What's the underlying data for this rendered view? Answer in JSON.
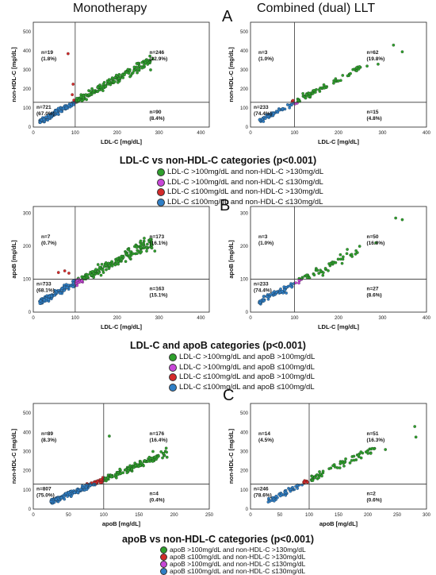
{
  "headers": {
    "left": "Monotherapy",
    "right": "Combined (dual) LLT"
  },
  "panel_letters": [
    "A",
    "B",
    "C"
  ],
  "colors": {
    "green": "#2ea02c",
    "magenta": "#c846d8",
    "red": "#d42a2a",
    "blue": "#2f7fc6"
  },
  "legends": [
    {
      "title": "LDL-C vs non-HDL-C categories (p<0.001)",
      "items": [
        {
          "text": "LDL-C >100mg/dL and non-HDL-C >130mg/dL",
          "color": "#2ea02c"
        },
        {
          "text": "LDL-C >100mg/dL and non-HDL-C ≤130mg/dL",
          "color": "#c846d8"
        },
        {
          "text": "LDL-C ≤100mg/dL and non-HDL-C >130mg/dL",
          "color": "#d42a2a"
        },
        {
          "text": "LDL-C ≤100mg/dL and non-HDL-C ≤130mg/dL",
          "color": "#2f7fc6"
        }
      ]
    },
    {
      "title": "LDL-C and apoB categories (p<0.001)",
      "items": [
        {
          "text": "LDL-C >100mg/dL and apoB >100mg/dL",
          "color": "#2ea02c"
        },
        {
          "text": "LDL-C >100mg/dL and apoB ≤100mg/dL",
          "color": "#c846d8"
        },
        {
          "text": "LDL-C ≤100mg/dL and apoB >100mg/dL",
          "color": "#d42a2a"
        },
        {
          "text": "LDL-C ≤100mg/dL and apoB ≤100mg/dL",
          "color": "#2f7fc6"
        }
      ]
    },
    {
      "title": "apoB vs non-HDL-C categories (p<0.001)",
      "items": [
        {
          "text": "apoB >100mg/dL and non-HDL-C >130mg/dL",
          "color": "#2ea02c"
        },
        {
          "text": "apoB ≤100mg/dL and non-HDL-C >130mg/dL",
          "color": "#d42a2a"
        },
        {
          "text": "apoB >100mg/dL and non-HDL-C ≤130mg/dL",
          "color": "#c846d8"
        },
        {
          "text": "apoB ≤100mg/dL and non-HDL-C ≤130mg/dL",
          "color": "#2f7fc6"
        }
      ]
    }
  ],
  "chart_data": [
    {
      "id": "A-mono",
      "type": "scatter",
      "xlabel": "LDL-C [mg/dL]",
      "ylabel": "non-HDL-C [mg/dL]",
      "xlim": [
        0,
        420
      ],
      "ylim": [
        0,
        550
      ],
      "xticks": [
        0,
        100,
        200,
        300,
        400
      ],
      "yticks": [
        0,
        100,
        200,
        300,
        400,
        500
      ],
      "xcut": 100,
      "ycut": 130,
      "slope": 1.22,
      "extra": 10,
      "xmin": 15,
      "xmax": 285,
      "n_points": 300,
      "outliers": [
        [
          83,
          385
        ],
        [
          95,
          225
        ],
        [
          93,
          170
        ],
        [
          260,
          310
        ],
        [
          248,
          285
        ],
        [
          280,
          300
        ]
      ],
      "quadrants": [
        {
          "pos": "top-left",
          "n": "n=19",
          "pct": "(1.8%)"
        },
        {
          "pos": "top-right",
          "n": "n=246",
          "pct": "(22.9%)"
        },
        {
          "pos": "bottom-left",
          "n": "n=721",
          "pct": "(67.0%)"
        },
        {
          "pos": "bottom-right",
          "n": "n=90",
          "pct": "(8.4%)"
        }
      ]
    },
    {
      "id": "A-dual",
      "type": "scatter",
      "xlabel": "LDL-C [mg/dL]",
      "ylabel": "non-HDL-C [mg/dL]",
      "xlim": [
        0,
        400
      ],
      "ylim": [
        0,
        550
      ],
      "xticks": [
        0,
        100,
        200,
        300,
        400
      ],
      "yticks": [
        0,
        100,
        200,
        300,
        400,
        500
      ],
      "xcut": 100,
      "ycut": 130,
      "slope": 1.22,
      "extra": 8,
      "xmin": 20,
      "xmax": 250,
      "n_points": 120,
      "outliers": [
        [
          325,
          430
        ],
        [
          345,
          395
        ],
        [
          265,
          320
        ],
        [
          290,
          330
        ]
      ],
      "quadrants": [
        {
          "pos": "top-left",
          "n": "n=3",
          "pct": "(1.0%)"
        },
        {
          "pos": "top-right",
          "n": "n=62",
          "pct": "(19.8%)"
        },
        {
          "pos": "bottom-left",
          "n": "n=233",
          "pct": "(74.4%)"
        },
        {
          "pos": "bottom-right",
          "n": "n=15",
          "pct": "(4.8%)"
        }
      ]
    },
    {
      "id": "B-mono",
      "type": "scatter",
      "xlabel": "LDL-C [mg/dL]",
      "ylabel": "apoB [mg/dL]",
      "xlim": [
        0,
        420
      ],
      "ylim": [
        0,
        320
      ],
      "xticks": [
        0,
        100,
        200,
        300,
        400
      ],
      "yticks": [
        0,
        100,
        200,
        300
      ],
      "xcut": 100,
      "ycut": 100,
      "slope": 0.68,
      "extra": 20,
      "xmin": 15,
      "xmax": 285,
      "n_points": 320,
      "outliers": [
        [
          60,
          120
        ],
        [
          75,
          125
        ],
        [
          85,
          118
        ],
        [
          290,
          185
        ],
        [
          270,
          195
        ]
      ],
      "quadrants": [
        {
          "pos": "top-left",
          "n": "n=7",
          "pct": "(0.7%)"
        },
        {
          "pos": "top-right",
          "n": "n=173",
          "pct": "(16.1%)"
        },
        {
          "pos": "bottom-left",
          "n": "n=733",
          "pct": "(68.1%)"
        },
        {
          "pos": "bottom-right",
          "n": "n=163",
          "pct": "(15.1%)"
        }
      ]
    },
    {
      "id": "B-dual",
      "type": "scatter",
      "xlabel": "LDL-C [mg/dL]",
      "ylabel": "apoB [mg/dL]",
      "xlim": [
        0,
        400
      ],
      "ylim": [
        0,
        320
      ],
      "xticks": [
        0,
        100,
        200,
        300,
        400
      ],
      "yticks": [
        0,
        100,
        200,
        300
      ],
      "xcut": 100,
      "ycut": 100,
      "slope": 0.68,
      "extra": 18,
      "xmin": 20,
      "xmax": 250,
      "n_points": 120,
      "outliers": [
        [
          330,
          285
        ],
        [
          345,
          280
        ],
        [
          285,
          210
        ],
        [
          220,
          190
        ],
        [
          230,
          175
        ]
      ],
      "quadrants": [
        {
          "pos": "top-left",
          "n": "n=3",
          "pct": "(1.0%)"
        },
        {
          "pos": "top-right",
          "n": "n=50",
          "pct": "(16.0%)"
        },
        {
          "pos": "bottom-left",
          "n": "n=233",
          "pct": "(74.4%)"
        },
        {
          "pos": "bottom-right",
          "n": "n=27",
          "pct": "(8.6%)"
        }
      ]
    },
    {
      "id": "C-mono",
      "type": "scatter",
      "xlabel": "apoB [mg/dL]",
      "ylabel": "non-HDL-C [mg/dL]",
      "xlim": [
        0,
        250
      ],
      "ylim": [
        0,
        550
      ],
      "xticks": [
        0,
        50,
        100,
        150,
        200,
        250
      ],
      "yticks": [
        0,
        100,
        200,
        300,
        400,
        500
      ],
      "xcut": 100,
      "ycut": 130,
      "slope": 1.55,
      "extra": 0,
      "xmin": 25,
      "xmax": 190,
      "n_points": 320,
      "outliers": [
        [
          108,
          380
        ],
        [
          185,
          290
        ],
        [
          170,
          300
        ],
        [
          190,
          270
        ]
      ],
      "quadrants": [
        {
          "pos": "top-left",
          "n": "n=89",
          "pct": "(8.3%)"
        },
        {
          "pos": "top-right",
          "n": "n=176",
          "pct": "(16.4%)"
        },
        {
          "pos": "bottom-left",
          "n": "n=807",
          "pct": "(75.0%)"
        },
        {
          "pos": "bottom-right",
          "n": "n=4",
          "pct": "(0.4%)"
        }
      ]
    },
    {
      "id": "C-dual",
      "type": "scatter",
      "xlabel": "apoB [mg/dL]",
      "ylabel": "non-HDL-C [mg/dL]",
      "xlim": [
        0,
        300
      ],
      "ylim": [
        0,
        550
      ],
      "xticks": [
        0,
        50,
        100,
        150,
        200,
        250,
        300
      ],
      "yticks": [
        0,
        100,
        200,
        300,
        400,
        500
      ],
      "xcut": 100,
      "ycut": 130,
      "slope": 1.55,
      "extra": -5,
      "xmin": 30,
      "xmax": 215,
      "n_points": 120,
      "outliers": [
        [
          280,
          430
        ],
        [
          282,
          375
        ],
        [
          230,
          310
        ],
        [
          205,
          290
        ]
      ],
      "quadrants": [
        {
          "pos": "top-left",
          "n": "n=14",
          "pct": "(4.5%)"
        },
        {
          "pos": "top-right",
          "n": "n=51",
          "pct": "(16.3%)"
        },
        {
          "pos": "bottom-left",
          "n": "n=246",
          "pct": "(78.6%)"
        },
        {
          "pos": "bottom-right",
          "n": "n=2",
          "pct": "(0.6%)"
        }
      ]
    }
  ]
}
